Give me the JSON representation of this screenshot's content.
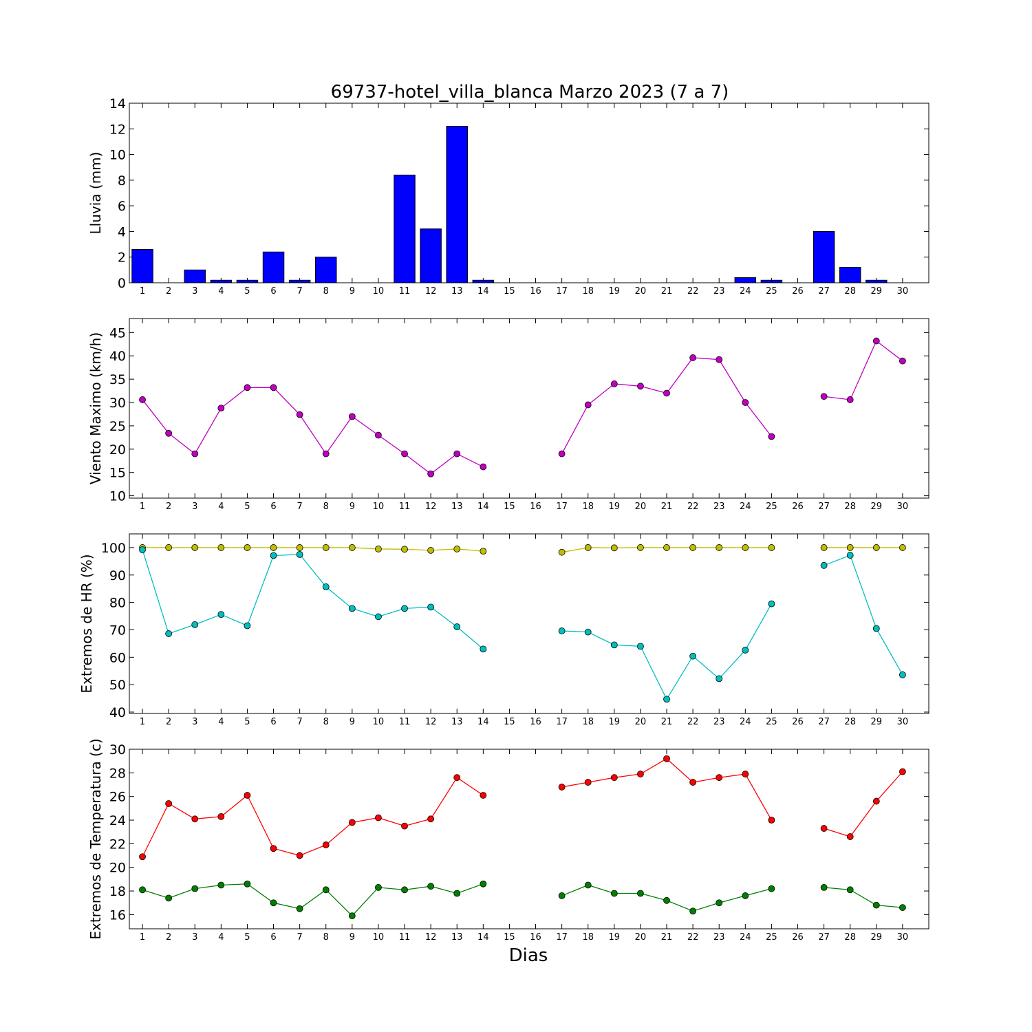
{
  "figure": {
    "title": "69737-hotel_villa_blanca Marzo 2023  (7 a 7)",
    "xlabel": "Dias"
  },
  "chart_data": [
    {
      "type": "bar",
      "ylabel": "Lluvia (mm)",
      "ylim": [
        0,
        14
      ],
      "yticks": [
        0,
        2,
        4,
        6,
        8,
        10,
        12,
        14
      ],
      "categories": [
        1,
        2,
        3,
        4,
        5,
        6,
        7,
        8,
        9,
        10,
        11,
        12,
        13,
        14,
        15,
        16,
        17,
        18,
        19,
        20,
        21,
        22,
        23,
        24,
        25,
        26,
        27,
        28,
        29,
        30
      ],
      "values": [
        2.6,
        0,
        1.0,
        0.2,
        0.2,
        2.4,
        0.2,
        2.0,
        0,
        0,
        8.4,
        4.2,
        12.2,
        0.2,
        0,
        0,
        0,
        0,
        0,
        0,
        0,
        0,
        0,
        0.4,
        0.2,
        0,
        4.0,
        1.2,
        0.2,
        0
      ],
      "color": "#0000ff",
      "grid": false
    },
    {
      "type": "line",
      "ylabel": "Viento Maximo (km/h)",
      "ylim": [
        9.5,
        48
      ],
      "yticks": [
        10,
        15,
        20,
        25,
        30,
        35,
        40,
        45
      ],
      "x": [
        1,
        2,
        3,
        4,
        5,
        6,
        7,
        8,
        9,
        10,
        11,
        12,
        13,
        14,
        15,
        16,
        17,
        18,
        19,
        20,
        21,
        22,
        23,
        24,
        25,
        26,
        27,
        28,
        29,
        30
      ],
      "series": [
        {
          "color": "#bf00bf",
          "values": [
            30.6,
            23.4,
            19.0,
            28.8,
            33.2,
            33.2,
            27.4,
            19.0,
            27.0,
            23.0,
            19.0,
            14.7,
            19.0,
            16.2,
            null,
            null,
            19.0,
            29.5,
            34.0,
            33.5,
            32.0,
            39.6,
            39.2,
            30.0,
            22.7,
            null,
            31.3,
            30.6,
            43.2,
            38.9
          ]
        }
      ],
      "grid": false
    },
    {
      "type": "line",
      "ylabel": "Extremos de HR (%)",
      "ylim": [
        39.5,
        105
      ],
      "yticks": [
        40,
        50,
        60,
        70,
        80,
        90,
        100
      ],
      "x": [
        1,
        2,
        3,
        4,
        5,
        6,
        7,
        8,
        9,
        10,
        11,
        12,
        13,
        14,
        15,
        16,
        17,
        18,
        19,
        20,
        21,
        22,
        23,
        24,
        25,
        26,
        27,
        28,
        29,
        30
      ],
      "series": [
        {
          "color": "#bfbf00",
          "values": [
            100,
            100,
            100,
            100,
            100,
            100,
            100,
            100,
            100,
            99.5,
            99.4,
            99.0,
            99.5,
            98.7,
            null,
            null,
            98.3,
            100,
            99.9,
            100,
            100,
            100,
            100,
            100,
            100,
            null,
            100,
            100,
            100,
            100
          ]
        },
        {
          "color": "#00bfbf",
          "values": [
            99.2,
            68.6,
            71.9,
            75.6,
            71.5,
            97.1,
            97.5,
            85.7,
            77.8,
            74.8,
            77.8,
            78.3,
            71.1,
            63.0,
            null,
            null,
            69.6,
            69.2,
            64.5,
            64.0,
            44.7,
            60.4,
            52.2,
            62.6,
            79.5,
            null,
            93.5,
            97.2,
            70.5,
            53.6
          ]
        }
      ],
      "grid": false
    },
    {
      "type": "line",
      "ylabel": "Extremos de Temperatura (c)",
      "ylim": [
        14.8,
        30
      ],
      "yticks": [
        16,
        18,
        20,
        22,
        24,
        26,
        28,
        30
      ],
      "x": [
        1,
        2,
        3,
        4,
        5,
        6,
        7,
        8,
        9,
        10,
        11,
        12,
        13,
        14,
        15,
        16,
        17,
        18,
        19,
        20,
        21,
        22,
        23,
        24,
        25,
        26,
        27,
        28,
        29,
        30
      ],
      "series": [
        {
          "color": "#ff0000",
          "values": [
            20.9,
            25.4,
            24.1,
            24.3,
            26.1,
            21.6,
            21.0,
            21.9,
            23.8,
            24.2,
            23.5,
            24.1,
            27.6,
            26.1,
            null,
            null,
            26.8,
            27.2,
            27.6,
            27.9,
            29.2,
            27.2,
            27.6,
            27.9,
            24.0,
            null,
            23.3,
            22.6,
            25.6,
            28.1
          ]
        },
        {
          "color": "#008000",
          "values": [
            18.1,
            17.4,
            18.2,
            18.5,
            18.6,
            17.0,
            16.5,
            18.1,
            15.9,
            18.3,
            18.1,
            18.4,
            17.8,
            18.6,
            null,
            null,
            17.6,
            18.5,
            17.8,
            17.8,
            17.2,
            16.3,
            17.0,
            17.6,
            18.2,
            null,
            18.3,
            18.1,
            16.8,
            16.6
          ]
        }
      ],
      "grid": false
    }
  ]
}
